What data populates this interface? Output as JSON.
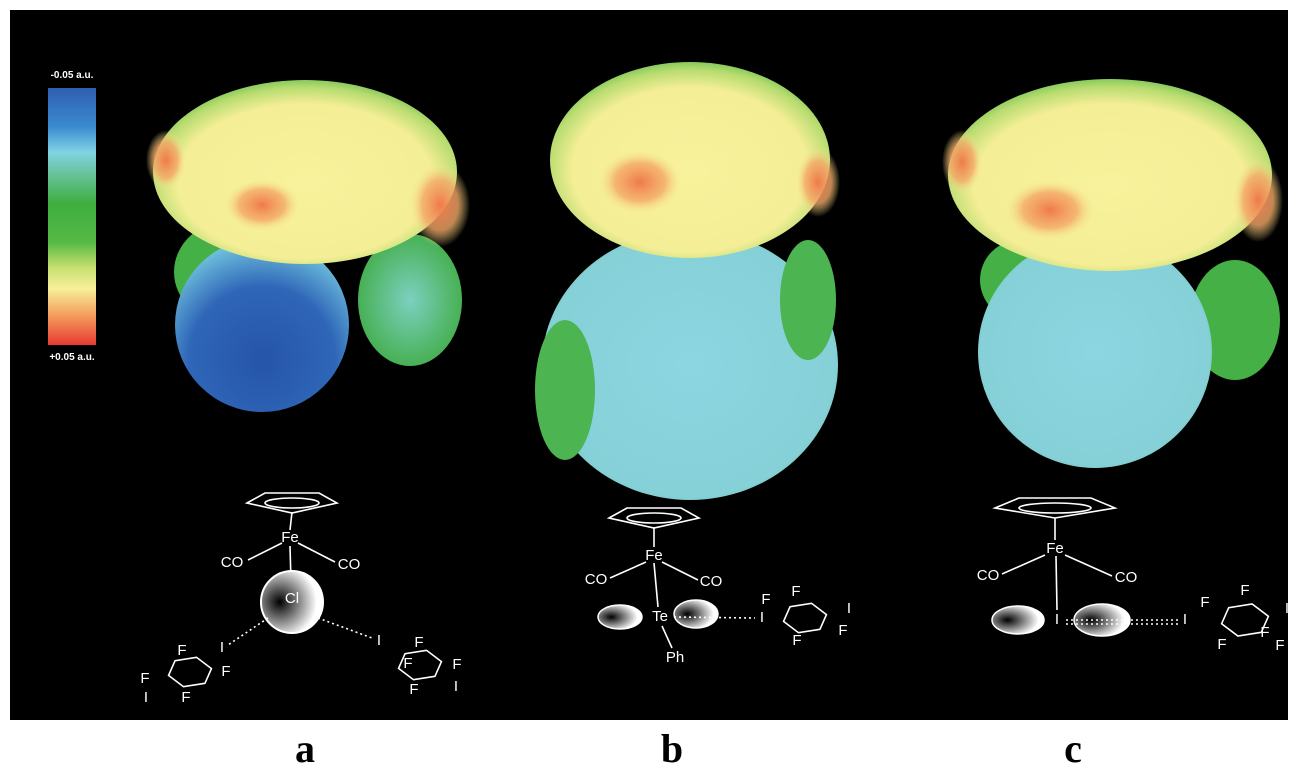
{
  "colorbar": {
    "top_label": "-0.05 a.u.",
    "bottom_label": "+0.05 a.u."
  },
  "panels": [
    {
      "label": "a",
      "atoms": [
        "Fe",
        "CO",
        "CO",
        "Cl",
        "I",
        "F",
        "F",
        "F",
        "I",
        "F",
        "I",
        "F",
        "F",
        "F",
        "F",
        "I"
      ]
    },
    {
      "label": "b",
      "atoms": [
        "Fe",
        "CO",
        "CO",
        "Te",
        "Ph",
        "I",
        "F",
        "F",
        "I",
        "F",
        "F"
      ]
    },
    {
      "label": "c",
      "atoms": [
        "Fe",
        "CO",
        "CO",
        "I",
        "I",
        "F",
        "F",
        "I",
        "F",
        "F",
        "F"
      ]
    }
  ]
}
